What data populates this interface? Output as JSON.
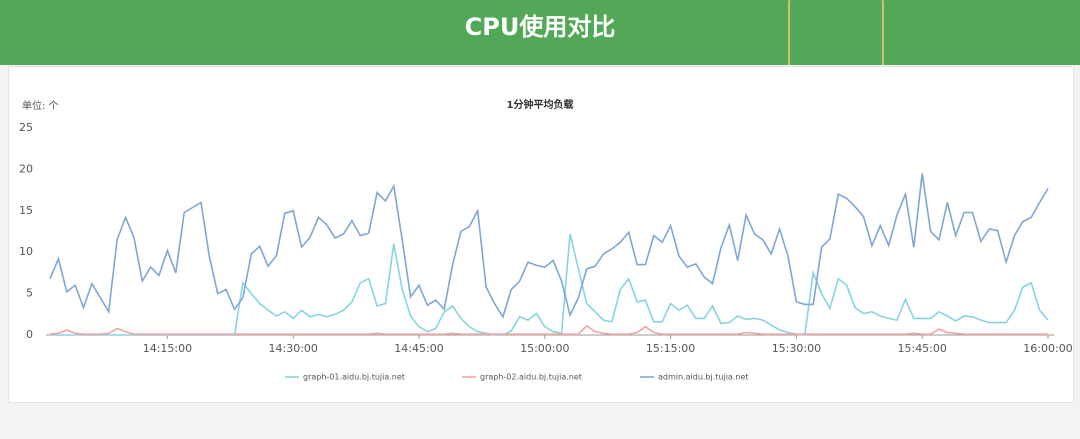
{
  "header": {
    "title": "CPU使用对比"
  },
  "chart_data": {
    "type": "line",
    "title": "1分钟平均负载",
    "unit_label": "单位: 个",
    "x": [
      "14:01:00",
      "14:02:00",
      "14:03:00",
      "14:04:00",
      "14:05:00",
      "14:06:00",
      "14:07:00",
      "14:08:00",
      "14:09:00",
      "14:10:00",
      "14:11:00",
      "14:12:00",
      "14:13:00",
      "14:14:00",
      "14:15:00",
      "14:16:00",
      "14:17:00",
      "14:18:00",
      "14:19:00",
      "14:20:00",
      "14:21:00",
      "14:22:00",
      "14:23:00",
      "14:24:00",
      "14:25:00",
      "14:26:00",
      "14:27:00",
      "14:28:00",
      "14:29:00",
      "14:30:00",
      "14:31:00",
      "14:32:00",
      "14:33:00",
      "14:34:00",
      "14:35:00",
      "14:36:00",
      "14:37:00",
      "14:38:00",
      "14:39:00",
      "14:40:00",
      "14:41:00",
      "14:42:00",
      "14:43:00",
      "14:44:00",
      "14:45:00",
      "14:46:00",
      "14:47:00",
      "14:48:00",
      "14:49:00",
      "14:50:00",
      "14:51:00",
      "14:52:00",
      "14:53:00",
      "14:54:00",
      "14:55:00",
      "14:56:00",
      "14:57:00",
      "14:58:00",
      "14:59:00",
      "15:00:00",
      "15:01:00",
      "15:02:00",
      "15:03:00",
      "15:04:00",
      "15:05:00",
      "15:06:00",
      "15:07:00",
      "15:08:00",
      "15:09:00",
      "15:10:00",
      "15:11:00",
      "15:12:00",
      "15:13:00",
      "15:14:00",
      "15:15:00",
      "15:16:00",
      "15:17:00",
      "15:18:00",
      "15:19:00",
      "15:20:00",
      "15:21:00",
      "15:22:00",
      "15:23:00",
      "15:24:00",
      "15:25:00",
      "15:26:00",
      "15:27:00",
      "15:28:00",
      "15:29:00",
      "15:30:00",
      "15:31:00",
      "15:32:00",
      "15:33:00",
      "15:34:00",
      "15:35:00",
      "15:36:00",
      "15:37:00",
      "15:38:00",
      "15:39:00",
      "15:40:00",
      "15:41:00",
      "15:42:00",
      "15:43:00",
      "15:44:00",
      "15:45:00",
      "15:46:00",
      "15:47:00",
      "15:48:00",
      "15:49:00",
      "15:50:00",
      "15:51:00",
      "15:52:00",
      "15:53:00",
      "15:54:00",
      "15:55:00",
      "15:56:00",
      "15:57:00",
      "15:58:00",
      "15:59:00",
      "16:00:00"
    ],
    "series": [
      {
        "name": "graph-01.aidu.bj.tujia.net",
        "color": "#86d4e0",
        "values": [
          0,
          0,
          0,
          0,
          0,
          0,
          0,
          0,
          0,
          0,
          0,
          0,
          0,
          0,
          0,
          0,
          0,
          0,
          0,
          0,
          0,
          0,
          0,
          6.3,
          5,
          3.8,
          3,
          2.3,
          2.8,
          2,
          3,
          2.2,
          2.5,
          2.2,
          2.5,
          3,
          4,
          6.3,
          6.8,
          3.5,
          3.8,
          11,
          5.5,
          2.3,
          1,
          0.4,
          0.8,
          2.8,
          3.5,
          2,
          1,
          0.4,
          0.2,
          0,
          0,
          0.5,
          2.2,
          1.8,
          2.6,
          1,
          0.4,
          0.2,
          12.2,
          8,
          3.8,
          2.8,
          1.8,
          1.6,
          5.5,
          6.8,
          4,
          4.2,
          1.6,
          1.6,
          3.8,
          3,
          3.6,
          2,
          2,
          3.5,
          1.4,
          1.5,
          2.3,
          1.9,
          2,
          1.8,
          1.2,
          0.6,
          0.3,
          0.1,
          0,
          7.5,
          5,
          3.2,
          6.8,
          6,
          3.3,
          2.6,
          2.8,
          2.3,
          2,
          1.8,
          4.3,
          2,
          2,
          2,
          2.8,
          2.3,
          1.7,
          2.3,
          2.2,
          1.8,
          1.5,
          1.5,
          1.5,
          3,
          5.8,
          6.3,
          3,
          1.8
        ]
      },
      {
        "name": "graph-02.aidu.bj.tujia.net",
        "color": "#f2a3a3",
        "values": [
          0.1,
          0.2,
          0.6,
          0.2,
          0.1,
          0.1,
          0.1,
          0.2,
          0.8,
          0.4,
          0.1,
          0.1,
          0.1,
          0.1,
          0.1,
          0.1,
          0.1,
          0.1,
          0.1,
          0.1,
          0.1,
          0.1,
          0.1,
          0.1,
          0.1,
          0.1,
          0.1,
          0.1,
          0.1,
          0.1,
          0.1,
          0.1,
          0.1,
          0.1,
          0.1,
          0.1,
          0.1,
          0.1,
          0.1,
          0.2,
          0.1,
          0.1,
          0.1,
          0.1,
          0.1,
          0.1,
          0.1,
          0.1,
          0.2,
          0.1,
          0.1,
          0.1,
          0.1,
          0.1,
          0.1,
          0.1,
          0.1,
          0.1,
          0.1,
          0.1,
          0.1,
          0.1,
          0.1,
          0.1,
          1.1,
          0.4,
          0.2,
          0.1,
          0.1,
          0.1,
          0.3,
          1,
          0.3,
          0.1,
          0.1,
          0.1,
          0.1,
          0.1,
          0.1,
          0.1,
          0.1,
          0.1,
          0.1,
          0.3,
          0.2,
          0.1,
          0.1,
          0.1,
          0.1,
          0.1,
          0.1,
          0.1,
          0.1,
          0.1,
          0.1,
          0.1,
          0.1,
          0.1,
          0.1,
          0.1,
          0.1,
          0.1,
          0.1,
          0.2,
          0.1,
          0.1,
          0.7,
          0.3,
          0.2,
          0.1,
          0.1,
          0.1,
          0.1,
          0.1,
          0.1,
          0.1,
          0.1,
          0.1,
          0.1,
          0.1
        ]
      },
      {
        "name": "admin.aidu.bj.tujia.net",
        "color": "#7ea7d6",
        "values": [
          6.8,
          9.2,
          5.2,
          6,
          3.3,
          6.2,
          4.5,
          2.8,
          11.5,
          14.2,
          11.8,
          6.5,
          8.2,
          7.2,
          10.2,
          7.5,
          14.8,
          15.4,
          16,
          9.5,
          5,
          5.5,
          3.1,
          4.5,
          9.8,
          10.7,
          8.3,
          9.6,
          14.7,
          15,
          10.6,
          11.8,
          14.2,
          13.3,
          11.7,
          12.2,
          13.8,
          12,
          12.3,
          17.2,
          16.2,
          18,
          11.5,
          4.6,
          6,
          3.6,
          4.2,
          3.1,
          8.5,
          12.5,
          13.1,
          15,
          5.8,
          3.8,
          2.2,
          5.5,
          6.5,
          8.8,
          8.4,
          8.2,
          9,
          6.5,
          2.4,
          4.5,
          8,
          8.3,
          9.8,
          10.4,
          11.2,
          12.4,
          8.5,
          8.5,
          12,
          11.2,
          13.2,
          9.5,
          8.2,
          8.6,
          7,
          6.2,
          10.5,
          13.3,
          9,
          14.5,
          12.2,
          11.5,
          9.8,
          12.8,
          9.5,
          4,
          3.7,
          3.7,
          10.6,
          11.6,
          17,
          16.5,
          15.5,
          14.3,
          10.8,
          13.2,
          10.8,
          14.5,
          17,
          10.6,
          19.5,
          12.5,
          11.5,
          16,
          12,
          14.8,
          14.8,
          11.3,
          12.8,
          12.6,
          8.8,
          12,
          13.7,
          14.2,
          16,
          17.7
        ]
      }
    ],
    "xlim": [
      "14:01:00",
      "16:00:00"
    ],
    "xticks": [
      "14:15:00",
      "14:30:00",
      "14:45:00",
      "15:00:00",
      "15:15:00",
      "15:30:00",
      "15:45:00",
      "16:00:00"
    ],
    "ylim": [
      0,
      25
    ],
    "yticks": [
      0,
      5,
      10,
      15,
      20,
      25
    ],
    "grid": false,
    "legend": "bottom"
  }
}
